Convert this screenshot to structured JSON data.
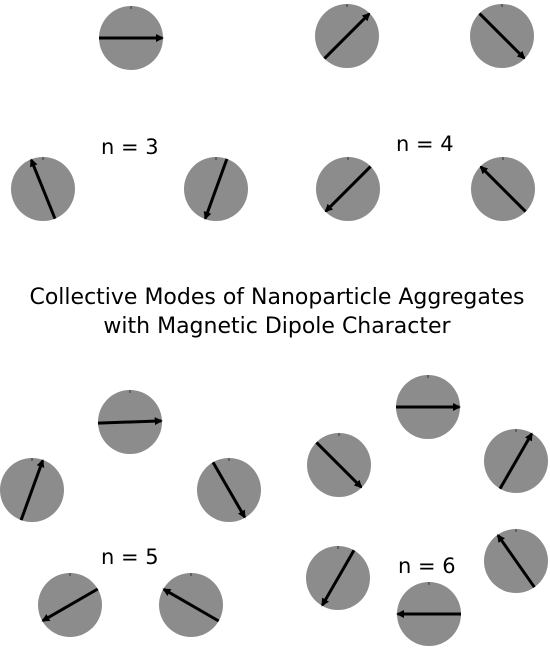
{
  "title_lines": [
    "Collective Modes of Nanoparticle Aggregates",
    "with Magnetic Dipole Character"
  ],
  "colors": {
    "particle": "#8c8c8c",
    "arrow": "#000000",
    "background": "#ffffff"
  },
  "groups": [
    {
      "label": "n = 3",
      "particle_arrow_angles_deg": [
        0,
        112,
        250
      ]
    },
    {
      "label": "n = 4",
      "particle_arrow_angles_deg": [
        45,
        -45,
        225,
        135
      ]
    },
    {
      "label": "n = 5",
      "particle_arrow_angles_deg": [
        2,
        70,
        -60,
        210,
        150
      ]
    },
    {
      "label": "n = 6",
      "particle_arrow_angles_deg": [
        0,
        -45,
        60,
        240,
        125,
        180
      ]
    }
  ]
}
